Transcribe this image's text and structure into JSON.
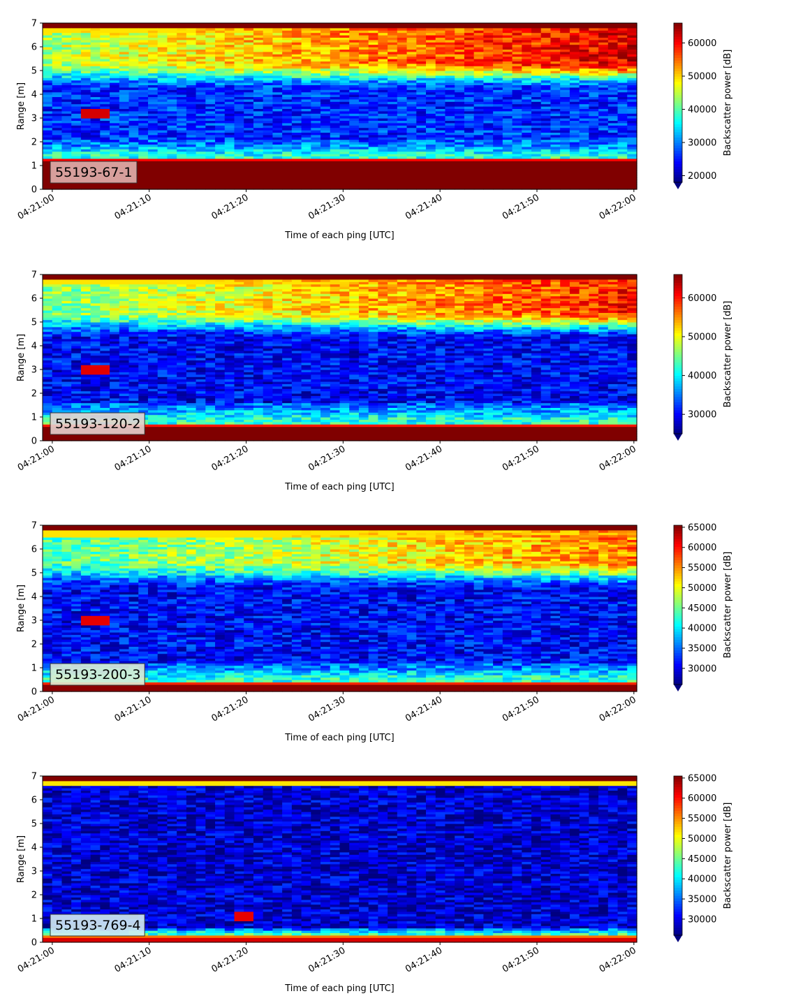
{
  "chart_data": [
    {
      "type": "heatmap",
      "label": "55193-67-1",
      "label_bg": "#e0b0ad",
      "xlabel": "Time of each ping [UTC]",
      "ylabel": "Range [m]",
      "x_ticks": [
        "04:21:00",
        "04:21:10",
        "04:21:20",
        "04:21:30",
        "04:21:40",
        "04:21:50",
        "04:22:00"
      ],
      "xlim": [
        "04:20:59",
        "04:22:00.3"
      ],
      "ylim": [
        0,
        7
      ],
      "y_ticks": [
        0,
        1,
        2,
        3,
        4,
        5,
        6,
        7
      ],
      "colorbar": {
        "label": "Backscatter power [dB]",
        "min": 18000,
        "max": 66000,
        "ticks": [
          20000,
          30000,
          40000,
          50000,
          60000
        ],
        "extend": "min"
      },
      "colormap": "jet",
      "features": {
        "bottom_band_top": 1.3,
        "bottom_band_value": 66000,
        "low_min": 26000,
        "low_range": [
          2.1,
          4.2
        ],
        "upper_start": 0.55,
        "upper_end": 0.9,
        "surface": 6.85,
        "hotspot": {
          "t": 5,
          "r": 3.2
        }
      }
    },
    {
      "type": "heatmap",
      "label": "55193-120-2",
      "label_bg": "#e6d2cf",
      "xlabel": "Time of each ping [UTC]",
      "ylabel": "Range [m]",
      "x_ticks": [
        "04:21:00",
        "04:21:10",
        "04:21:20",
        "04:21:30",
        "04:21:40",
        "04:21:50",
        "04:22:00"
      ],
      "xlim": [
        "04:20:59",
        "04:22:00.3"
      ],
      "ylim": [
        0,
        7
      ],
      "y_ticks": [
        0,
        1,
        2,
        3,
        4,
        5,
        6,
        7
      ],
      "colorbar": {
        "label": "Backscatter power [dB]",
        "min": 25000,
        "max": 66000,
        "ticks": [
          30000,
          40000,
          50000,
          60000
        ],
        "extend": "min"
      },
      "colormap": "jet",
      "features": {
        "bottom_band_top": 0.75,
        "bottom_band_value": 66000,
        "low_min": 30000,
        "low_range": [
          1.6,
          4.3
        ],
        "upper_start": 0.5,
        "upper_end": 0.85,
        "surface": 6.85,
        "hotspot": {
          "t": 5,
          "r": 3.0
        }
      }
    },
    {
      "type": "heatmap",
      "label": "55193-200-3",
      "label_bg": "#dcebd4",
      "xlabel": "Time of each ping [UTC]",
      "ylabel": "Range [m]",
      "x_ticks": [
        "04:21:00",
        "04:21:10",
        "04:21:20",
        "04:21:30",
        "04:21:40",
        "04:21:50",
        "04:22:00"
      ],
      "xlim": [
        "04:20:59",
        "04:22:00.3"
      ],
      "ylim": [
        0,
        7
      ],
      "y_ticks": [
        0,
        1,
        2,
        3,
        4,
        5,
        6,
        7
      ],
      "colorbar": {
        "label": "Backscatter power [dB]",
        "min": 26000,
        "max": 65500,
        "ticks": [
          30000,
          35000,
          40000,
          45000,
          50000,
          55000,
          60000,
          65000
        ],
        "extend": "min"
      },
      "colormap": "jet",
      "features": {
        "bottom_band_top": 0.45,
        "bottom_band_value": 65000,
        "low_min": 31000,
        "low_range": [
          1.2,
          4.3
        ],
        "upper_start": 0.45,
        "upper_end": 0.75,
        "surface": 6.8,
        "hotspot": {
          "t": 5,
          "r": 3.0
        }
      }
    },
    {
      "type": "heatmap",
      "label": "55193-769-4",
      "label_bg": "#d3ecf1",
      "xlabel": "Time of each ping [UTC]",
      "ylabel": "Range [m]",
      "x_ticks": [
        "04:21:00",
        "04:21:10",
        "04:21:20",
        "04:21:30",
        "04:21:40",
        "04:21:50",
        "04:22:00"
      ],
      "xlim": [
        "04:20:59",
        "04:22:00.3"
      ],
      "ylim": [
        0,
        7
      ],
      "y_ticks": [
        0,
        1,
        2,
        3,
        4,
        5,
        6,
        7
      ],
      "colorbar": {
        "label": "Backscatter power [dB]",
        "min": 26000,
        "max": 65500,
        "ticks": [
          30000,
          35000,
          40000,
          45000,
          50000,
          55000,
          60000,
          65000
        ],
        "extend": "min"
      },
      "colormap": "jet",
      "features": {
        "bottom_band_top": 0.35,
        "bottom_band_value": 62000,
        "low_min": 29000,
        "low_range": [
          0.6,
          6.7
        ],
        "upper_start": 0.34,
        "upper_end": 0.38,
        "surface": 6.85,
        "hotspot": {
          "t": 20,
          "r": 1.1
        }
      }
    }
  ]
}
